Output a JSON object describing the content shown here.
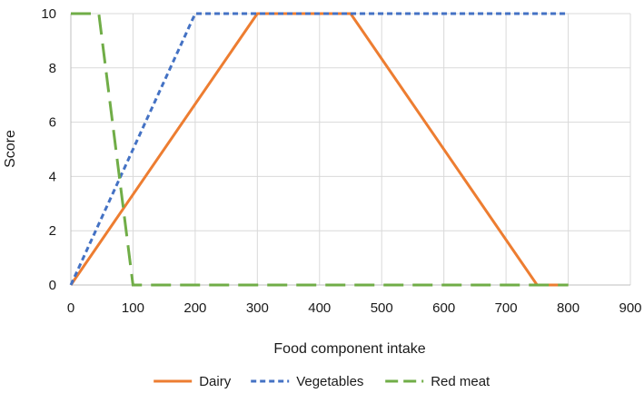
{
  "chart_data": {
    "type": "line",
    "title": "",
    "xlabel": "Food component intake",
    "ylabel": "Score",
    "xlim": [
      0,
      900
    ],
    "ylim": [
      0,
      10
    ],
    "x_ticks": [
      0,
      100,
      200,
      300,
      400,
      500,
      600,
      700,
      800,
      900
    ],
    "y_ticks": [
      0,
      2,
      4,
      6,
      8,
      10
    ],
    "grid": true,
    "legend_position": "bottom",
    "series": [
      {
        "name": "Dairy",
        "color": "#ED7D31",
        "dash": "solid",
        "points": [
          [
            0,
            0
          ],
          [
            300,
            10
          ],
          [
            450,
            10
          ],
          [
            750,
            0
          ],
          [
            800,
            0
          ]
        ]
      },
      {
        "name": "Vegetables",
        "color": "#4472C4",
        "dash": "short-dash",
        "points": [
          [
            0,
            0
          ],
          [
            200,
            10
          ],
          [
            800,
            10
          ]
        ]
      },
      {
        "name": "Red meat",
        "color": "#70AD47",
        "dash": "long-dash",
        "points": [
          [
            0,
            10
          ],
          [
            45,
            10
          ],
          [
            100,
            0
          ],
          [
            800,
            0
          ]
        ]
      }
    ]
  }
}
